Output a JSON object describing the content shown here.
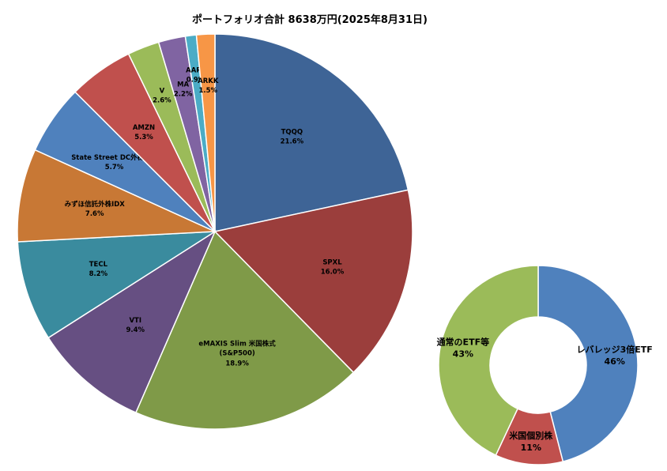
{
  "chart_data": [
    {
      "type": "pie",
      "title": "ポートフォリオ合計 8638万円(2025年8月31日)",
      "slices": [
        {
          "name": "TQQQ",
          "value": 21.6,
          "label": "21.6%",
          "color": "#3E6496"
        },
        {
          "name": "SPXL",
          "value": 16.0,
          "label": "16.0%",
          "color": "#9B3E3C"
        },
        {
          "name": "eMAXIS Slim 米国株式",
          "name2": "(S&P500)",
          "value": 18.9,
          "label": "18.9%",
          "color": "#7F9A48"
        },
        {
          "name": "VTI",
          "value": 9.4,
          "label": "9.4%",
          "color": "#664F82"
        },
        {
          "name": "TECL",
          "value": 8.2,
          "label": "8.2%",
          "color": "#3A8B9E"
        },
        {
          "name": "みずほ信託外株IDX",
          "value": 7.6,
          "label": "7.6%",
          "color": "#C87835"
        },
        {
          "name": "State Street DC外株IDX",
          "value": 5.7,
          "label": "5.7%",
          "color": "#4F81BD"
        },
        {
          "name": "AMZN",
          "value": 5.3,
          "label": "5.3%",
          "color": "#C0504D"
        },
        {
          "name": "V",
          "value": 2.6,
          "label": "2.6%",
          "color": "#9BBB59"
        },
        {
          "name": "MA",
          "value": 2.2,
          "label": "2.2%",
          "color": "#8064A2"
        },
        {
          "name": "AAPL",
          "value": 0.9,
          "label": "0.9%",
          "color": "#4BACC6"
        },
        {
          "name": "ARKK",
          "value": 1.5,
          "label": "1.5%",
          "color": "#F79646"
        }
      ]
    },
    {
      "type": "donut",
      "slices": [
        {
          "name": "レバレッジ3倍ETF",
          "value": 46,
          "label": "46%",
          "color": "#4F81BD"
        },
        {
          "name": "米国個別株",
          "value": 11,
          "label": "11%",
          "color": "#C0504D"
        },
        {
          "name": "通常のETF等",
          "value": 43,
          "label": "43%",
          "color": "#9BBB59"
        }
      ]
    }
  ]
}
